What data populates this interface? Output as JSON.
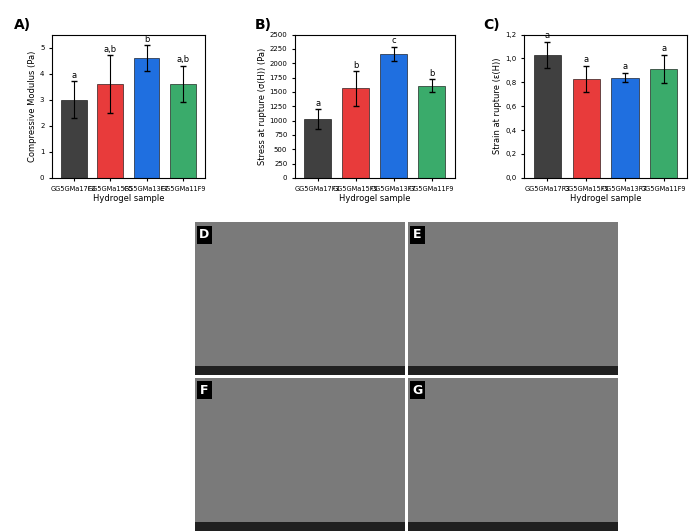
{
  "chart_data": [
    {
      "type": "bar",
      "title": "A)",
      "x_label": "Hydrogel sample",
      "y_label": "Compressive Modulus (Pa)",
      "categories": [
        "GG5GMa17F3",
        "GG5GMa15F5",
        "GG5GMa13F7",
        "GG5GMa11F9"
      ],
      "values": [
        3.0,
        3.6,
        4.6,
        3.6
      ],
      "errors": [
        0.7,
        1.1,
        0.5,
        0.7
      ],
      "letters": [
        "a",
        "a,b",
        "b",
        "a,b"
      ],
      "colors": [
        "#404040",
        "#e83b3b",
        "#1f6fe0",
        "#3aab6b"
      ],
      "ylim": [
        0,
        5.5
      ],
      "yticks": [
        0,
        1,
        2,
        3,
        4,
        5
      ],
      "grid": false
    },
    {
      "type": "bar",
      "title": "B)",
      "x_label": "Hydrogel sample",
      "y_label": "Stress at rupture (σ(H)) (Pa)",
      "categories": [
        "GG5GMa17F3",
        "GG5GMa15F5",
        "GG5GMa13F7",
        "GG5GMa11F9"
      ],
      "values": [
        1030,
        1560,
        2160,
        1610
      ],
      "errors": [
        170,
        300,
        130,
        110
      ],
      "letters": [
        "a",
        "b",
        "c",
        "b"
      ],
      "colors": [
        "#404040",
        "#e83b3b",
        "#1f6fe0",
        "#3aab6b"
      ],
      "ylim": [
        0,
        2500
      ],
      "yticks": [
        0,
        250,
        500,
        750,
        1000,
        1250,
        1500,
        1750,
        2000,
        2250,
        2500
      ],
      "grid": false
    },
    {
      "type": "bar",
      "title": "C)",
      "x_label": "Hydrogel sample",
      "y_label": "Strain at rupture (ε(H))",
      "categories": [
        "GG5GMa17F3",
        "GG5GMa15F5",
        "GG5GMa13F7",
        "GG5GMa11F9"
      ],
      "values": [
        1.03,
        0.83,
        0.84,
        0.91
      ],
      "errors": [
        0.11,
        0.11,
        0.04,
        0.12
      ],
      "letters": [
        "a",
        "a",
        "a",
        "a"
      ],
      "colors": [
        "#404040",
        "#e83b3b",
        "#1f6fe0",
        "#3aab6b"
      ],
      "ylim": [
        0,
        1.2
      ],
      "yticks": [
        {
          "value": 0.0,
          "label": "0,0"
        },
        {
          "value": 0.2,
          "label": "0,2"
        },
        {
          "value": 0.4,
          "label": "0,4"
        },
        {
          "value": 0.6,
          "label": "0,6"
        },
        {
          "value": 0.8,
          "label": "0,8"
        },
        {
          "value": 1.0,
          "label": "1,0"
        },
        {
          "value": 1.2,
          "label": "1,2"
        }
      ],
      "grid": false
    }
  ],
  "image_panels": [
    "D",
    "E",
    "F",
    "G"
  ]
}
